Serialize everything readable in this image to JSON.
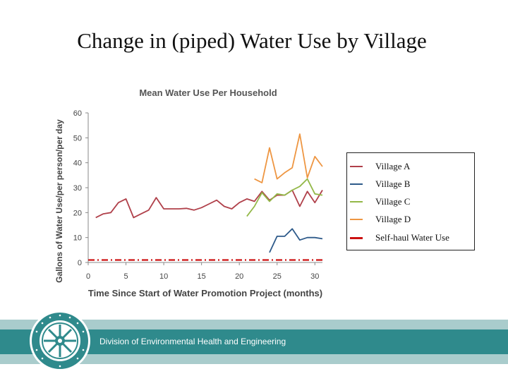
{
  "slide": {
    "title": "Change in (piped) Water Use by Village",
    "footer_text": "Division of Environmental Health and Engineering"
  },
  "colors": {
    "village_a": "#b0404a",
    "village_b": "#2e5a8a",
    "village_c": "#93b848",
    "village_d": "#ee9642",
    "self_haul": "#cc1111",
    "band_dark": "#2f8a8c",
    "band_light": "#a9cccc"
  },
  "logo": {
    "icon": "circular-seal-icon"
  },
  "chart_data": {
    "type": "line",
    "title": "Mean Water Use Per Household",
    "xlabel": "Time Since Start of Water Promotion Project (months)",
    "ylabel": "Gallons of Water Use/per person/per day",
    "xlim": [
      0,
      31
    ],
    "ylim": [
      0,
      60
    ],
    "xticks": [
      0,
      5,
      10,
      15,
      20,
      25,
      30
    ],
    "yticks": [
      0,
      10,
      20,
      30,
      40,
      50,
      60
    ],
    "grid": false,
    "legend_position": "right",
    "series": [
      {
        "name": "Village A",
        "color": "#b0404a",
        "style": "solid",
        "x": [
          1,
          2,
          3,
          4,
          5,
          6,
          7,
          8,
          9,
          10,
          11,
          12,
          13,
          14,
          15,
          16,
          17,
          18,
          19,
          20,
          21,
          22,
          23,
          24,
          25,
          26,
          27,
          28,
          29,
          30,
          31
        ],
        "y": [
          18,
          19.5,
          20,
          24,
          25.5,
          18,
          19.5,
          21,
          26,
          21.5,
          21.5,
          21.5,
          21.7,
          21,
          22,
          23.5,
          25,
          22.5,
          21.5,
          24,
          25.5,
          24.5,
          28.5,
          25,
          27,
          27,
          29,
          22.5,
          28.5,
          24,
          29
        ]
      },
      {
        "name": "Village B",
        "color": "#2e5a8a",
        "style": "solid",
        "x": [
          24,
          25,
          26,
          27,
          28,
          29,
          30,
          31
        ],
        "y": [
          4,
          10.5,
          10.5,
          13.5,
          9,
          10,
          10,
          9.5
        ]
      },
      {
        "name": "Village C",
        "color": "#93b848",
        "style": "solid",
        "x": [
          21,
          22,
          23,
          24,
          25,
          26,
          27,
          28,
          29,
          30,
          31
        ],
        "y": [
          18.5,
          22.5,
          28,
          24.5,
          27.5,
          27,
          29,
          30.5,
          33.5,
          27.5,
          27
        ]
      },
      {
        "name": "Village D",
        "color": "#ee9642",
        "style": "solid",
        "x": [
          22,
          23,
          24,
          25,
          26,
          27,
          28,
          29,
          30,
          31
        ],
        "y": [
          33.5,
          32,
          46,
          33.5,
          36,
          38,
          51.5,
          34,
          42.5,
          38.5
        ]
      },
      {
        "name": "Self-haul Water Use",
        "color": "#cc1111",
        "style": "dashdot",
        "x": [
          0,
          31
        ],
        "y": [
          1,
          1
        ]
      }
    ]
  }
}
